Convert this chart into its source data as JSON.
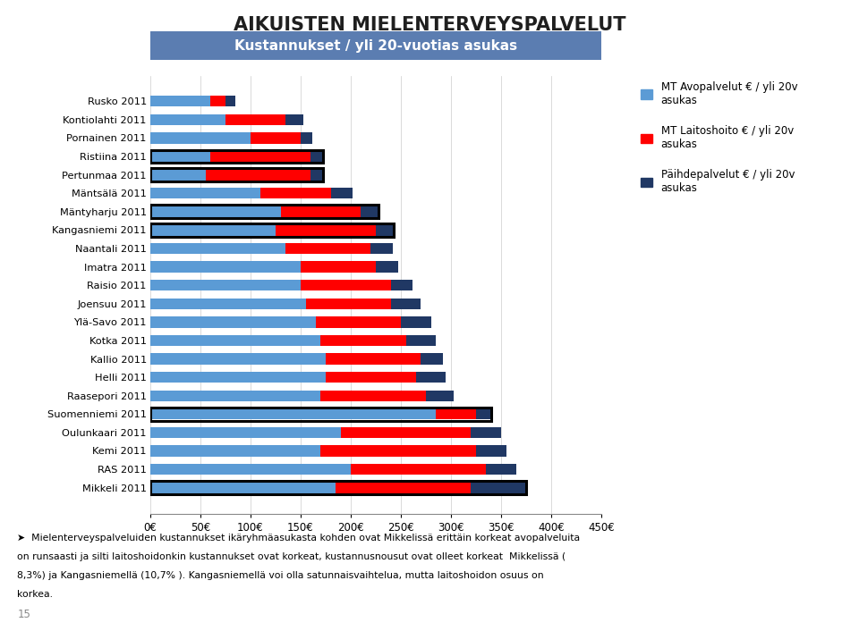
{
  "title": "AIKUISTEN MIELENTERVEYSPALVELUT",
  "header": "Kustannukset / yli 20-vuotias asukas",
  "categories": [
    "Rusko 2011",
    "Kontiolahti 2011",
    "Pornainen 2011",
    "Ristiina 2011",
    "Pertunmaa 2011",
    "Mäntsälä 2011",
    "Mäntyharju 2011",
    "Kangasniemi 2011",
    "Naantali 2011",
    "Imatra 2011",
    "Raisio 2011",
    "Joensuu 2011",
    "Ylä-Savo 2011",
    "Kotka 2011",
    "Kallio 2011",
    "Helli 2011",
    "Raasepori 2011",
    "Suomenniemi 2011",
    "Oulunkaari 2011",
    "Kemi 2011",
    "RAS 2011",
    "Mikkeli 2011"
  ],
  "avo": [
    60,
    75,
    100,
    60,
    55,
    110,
    130,
    125,
    135,
    150,
    150,
    155,
    165,
    170,
    175,
    175,
    170,
    285,
    190,
    170,
    200,
    185
  ],
  "laitos": [
    15,
    60,
    50,
    100,
    105,
    70,
    80,
    100,
    85,
    75,
    90,
    85,
    85,
    85,
    95,
    90,
    105,
    40,
    130,
    155,
    135,
    135
  ],
  "paihde": [
    10,
    18,
    12,
    12,
    12,
    22,
    18,
    18,
    22,
    22,
    22,
    30,
    30,
    30,
    22,
    30,
    28,
    15,
    30,
    30,
    30,
    55
  ],
  "outlined": [
    3,
    4,
    6,
    7,
    17,
    21
  ],
  "colors": {
    "avo": "#5B9BD5",
    "laitos": "#FF0000",
    "paihde": "#203864",
    "header_bg": "#5B7DB1",
    "header_text": "#FFFFFF",
    "background": "#FFFFFF",
    "title_color": "#1F1F1F"
  },
  "legend_labels": [
    "MT Avopalvelut € / yli 20v\nasukas",
    "MT Laitoshoito € / yli 20v\nasukas",
    "Päihdepalvelut € / yli 20v\nasukas"
  ],
  "xlim": [
    0,
    450
  ],
  "xlabel_ticks": [
    0,
    50,
    100,
    150,
    200,
    250,
    300,
    350,
    400,
    450
  ],
  "footer_line1": "➤  Mielenterveyspalveluiden kustannukset ikäryhmäasukasta kohden ovat Mikkelissä erittäin korkeat avopalveluita",
  "footer_line2": "on runsaasti ja silti laitoshoidonkin kustannukset ovat korkeat, kustannusnousut ovat olleet korkeat  Mikkelissä (",
  "footer_line3": "8,3%) ja Kangasniemellä (10,7% ). Kangasniemellä voi olla satunnaisvaihtelua, mutta laitoshoidon osuus on",
  "footer_line4": "korkea.",
  "footer_num": "15"
}
